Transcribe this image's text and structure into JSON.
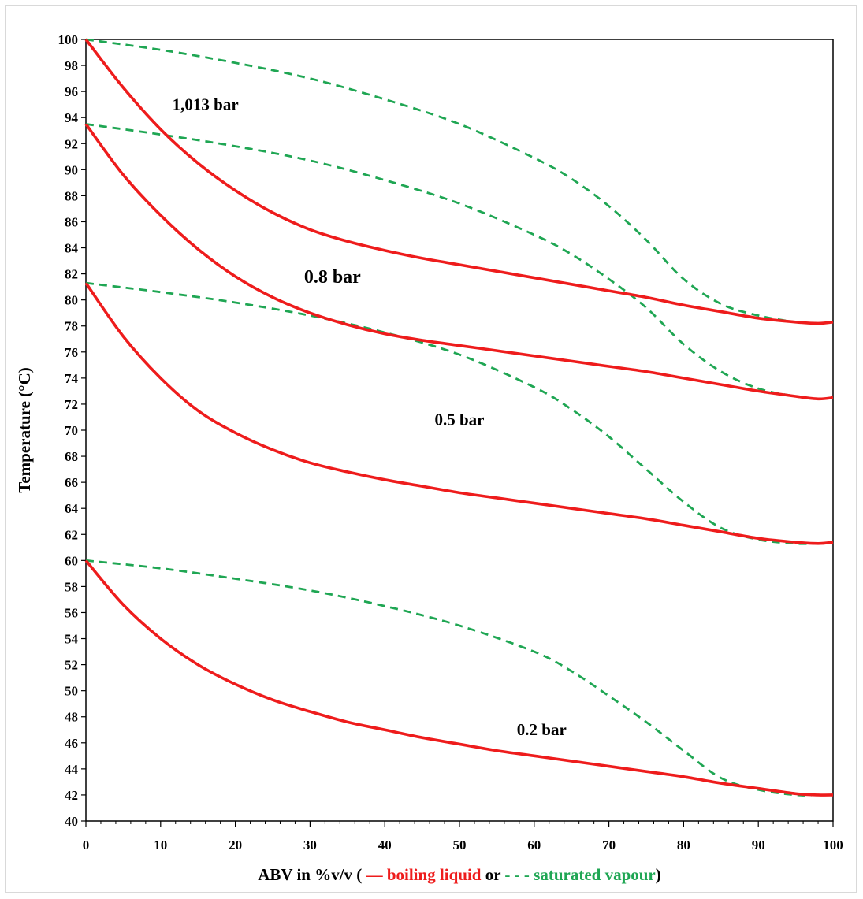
{
  "chart_data": {
    "type": "line",
    "xlabel_parts": {
      "prefix": "ABV in  %v/v ( ",
      "liquid_marker": "— ",
      "liquid_text": "boiling liquid",
      "or_text": "  or ",
      "vapour_marker": "- - - ",
      "vapour_text": "saturated vapour",
      "suffix": ")"
    },
    "ylabel": "Temperature (°C)",
    "xlim": [
      0,
      100
    ],
    "ylim": [
      40,
      100
    ],
    "x_ticks": [
      "0",
      "10",
      "20",
      "30",
      "40",
      "50",
      "60",
      "70",
      "80",
      "90",
      "100"
    ],
    "y_ticks": [
      "40",
      "42",
      "44",
      "46",
      "48",
      "50",
      "52",
      "54",
      "56",
      "58",
      "60",
      "62",
      "64",
      "66",
      "68",
      "70",
      "72",
      "74",
      "76",
      "78",
      "80",
      "82",
      "84",
      "86",
      "88",
      "90",
      "92",
      "94",
      "96",
      "98",
      "100"
    ],
    "grid": false,
    "colors": {
      "liquid": "#ee1c1c",
      "vapour": "#1fa653"
    },
    "curve_labels": [
      {
        "text": "1,013 bar",
        "pressure": "1.013",
        "at": [
          16,
          94.6
        ]
      },
      {
        "text": "0.8 bar",
        "pressure": "0.8",
        "at": [
          33,
          81.3
        ]
      },
      {
        "text": "0.5 bar",
        "pressure": "0.5",
        "at": [
          50,
          70.4
        ]
      },
      {
        "text": "0.2 bar",
        "pressure": "0.2",
        "at": [
          61,
          46.6
        ]
      }
    ],
    "series": [
      {
        "pressure": "1.013",
        "phase": "liquid",
        "x": [
          0,
          5,
          10,
          15,
          20,
          25,
          30,
          35,
          40,
          45,
          50,
          55,
          60,
          65,
          70,
          75,
          80,
          85,
          90,
          95,
          98,
          100
        ],
        "values": [
          100,
          96.3,
          93.1,
          90.5,
          88.4,
          86.7,
          85.4,
          84.5,
          83.8,
          83.2,
          82.7,
          82.2,
          81.7,
          81.2,
          80.7,
          80.2,
          79.6,
          79.1,
          78.6,
          78.3,
          78.2,
          78.3
        ]
      },
      {
        "pressure": "1.013",
        "phase": "vapour",
        "x": [
          0,
          10,
          20,
          30,
          40,
          50,
          60,
          65,
          70,
          75,
          80,
          85,
          90,
          95,
          98,
          100
        ],
        "values": [
          100,
          99.2,
          98.2,
          97,
          95.4,
          93.5,
          90.9,
          89.3,
          87.2,
          84.6,
          81.6,
          79.7,
          78.8,
          78.3,
          78.2,
          78.3
        ]
      },
      {
        "pressure": "0.8",
        "phase": "liquid",
        "x": [
          0,
          5,
          10,
          15,
          20,
          25,
          30,
          35,
          40,
          45,
          50,
          55,
          60,
          65,
          70,
          75,
          80,
          85,
          90,
          95,
          98,
          100
        ],
        "values": [
          93.5,
          89.6,
          86.5,
          83.9,
          81.8,
          80.2,
          79,
          78.1,
          77.4,
          76.9,
          76.5,
          76.1,
          75.7,
          75.3,
          74.9,
          74.5,
          74,
          73.5,
          73,
          72.6,
          72.4,
          72.5
        ]
      },
      {
        "pressure": "0.8",
        "phase": "vapour",
        "x": [
          0,
          10,
          20,
          30,
          40,
          50,
          60,
          65,
          70,
          75,
          80,
          85,
          90,
          95,
          98,
          100
        ],
        "values": [
          93.5,
          92.7,
          91.8,
          90.7,
          89.2,
          87.4,
          85,
          83.5,
          81.6,
          79.4,
          76.6,
          74.5,
          73.2,
          72.6,
          72.4,
          72.5
        ]
      },
      {
        "pressure": "0.5",
        "phase": "liquid",
        "x": [
          0,
          5,
          10,
          15,
          20,
          25,
          30,
          35,
          40,
          45,
          50,
          55,
          60,
          65,
          70,
          75,
          80,
          85,
          90,
          95,
          98,
          100
        ],
        "values": [
          81.3,
          77.2,
          74,
          71.5,
          69.8,
          68.5,
          67.5,
          66.8,
          66.2,
          65.7,
          65.2,
          64.8,
          64.4,
          64,
          63.6,
          63.2,
          62.7,
          62.2,
          61.7,
          61.4,
          61.3,
          61.4
        ]
      },
      {
        "pressure": "0.5",
        "phase": "vapour",
        "x": [
          0,
          10,
          20,
          30,
          40,
          50,
          60,
          65,
          70,
          75,
          80,
          85,
          90,
          95,
          98,
          100
        ],
        "values": [
          81.3,
          80.6,
          79.8,
          78.8,
          77.5,
          75.8,
          73.3,
          71.6,
          69.5,
          67,
          64.5,
          62.5,
          61.6,
          61.3,
          61.3,
          61.4
        ]
      },
      {
        "pressure": "0.2",
        "phase": "liquid",
        "x": [
          0,
          5,
          10,
          15,
          20,
          25,
          30,
          35,
          40,
          45,
          50,
          55,
          60,
          65,
          70,
          75,
          80,
          85,
          90,
          95,
          98,
          100
        ],
        "values": [
          60,
          56.6,
          54,
          52,
          50.5,
          49.3,
          48.4,
          47.6,
          47,
          46.4,
          45.9,
          45.4,
          45,
          44.6,
          44.2,
          43.8,
          43.4,
          42.9,
          42.5,
          42.1,
          42,
          42
        ]
      },
      {
        "pressure": "0.2",
        "phase": "vapour",
        "x": [
          0,
          10,
          20,
          30,
          40,
          50,
          60,
          65,
          70,
          75,
          80,
          85,
          90,
          95,
          98,
          100
        ],
        "values": [
          60,
          59.4,
          58.6,
          57.7,
          56.5,
          55,
          53,
          51.5,
          49.6,
          47.6,
          45.4,
          43.3,
          42.4,
          42,
          42,
          42
        ]
      }
    ]
  }
}
